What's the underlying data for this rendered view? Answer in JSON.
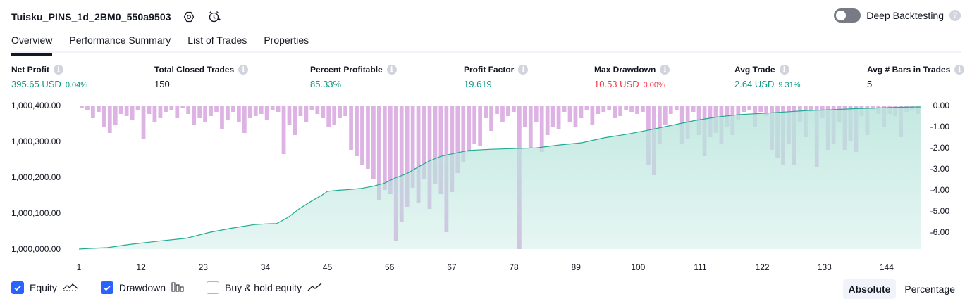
{
  "header": {
    "strategy_name": "Tuisku_PINS_1d_2BM0_550a9503",
    "settings_icon": "settings-icon",
    "alert_icon": "add-alert-icon",
    "deep_backtesting_label": "Deep Backtesting",
    "deep_backtesting_enabled": false
  },
  "tabs": [
    {
      "label": "Overview",
      "active": true
    },
    {
      "label": "Performance Summary",
      "active": false
    },
    {
      "label": "List of Trades",
      "active": false
    },
    {
      "label": "Properties",
      "active": false
    }
  ],
  "metrics": [
    {
      "label": "Net Profit",
      "value": "395.65 USD",
      "pct": "0.04%",
      "tone": "green"
    },
    {
      "label": "Total Closed Trades",
      "value": "150",
      "pct": "",
      "tone": "neutral"
    },
    {
      "label": "Percent Profitable",
      "value": "85.33%",
      "pct": "",
      "tone": "green"
    },
    {
      "label": "Profit Factor",
      "value": "19.619",
      "pct": "",
      "tone": "green"
    },
    {
      "label": "Max Drawdown",
      "value": "10.53 USD",
      "pct": "0.00%",
      "tone": "red"
    },
    {
      "label": "Avg Trade",
      "value": "2.64 USD",
      "pct": "9.31%",
      "tone": "green"
    },
    {
      "label": "Avg # Bars in Trades",
      "value": "5",
      "pct": "",
      "tone": "neutral"
    }
  ],
  "legend": {
    "equity": {
      "label": "Equity",
      "checked": true,
      "icon": "equity-line-icon"
    },
    "drawdown": {
      "label": "Drawdown",
      "checked": true,
      "icon": "drawdown-bars-icon"
    },
    "buy_hold": {
      "label": "Buy & hold equity",
      "checked": false,
      "icon": "buy-hold-line-icon"
    }
  },
  "view_mode": {
    "absolute": "Absolute",
    "percentage": "Percentage",
    "selected": "Absolute"
  },
  "colors": {
    "equity_line": "#22ab94",
    "equity_fill": "#b9e5dc",
    "drawdown_bar": "#ce93d8",
    "drawdown_bar_overlap": "#9fa8da",
    "accent": "#2962ff"
  },
  "chart_data": {
    "type": "area",
    "x_ticks": [
      "1",
      "12",
      "23",
      "34",
      "45",
      "56",
      "67",
      "78",
      "89",
      "100",
      "111",
      "122",
      "133",
      "144"
    ],
    "y_left_ticks": [
      "1,000,400.00",
      "1,000,300.00",
      "1,000,200.00",
      "1,000,100.00",
      "1,000,000.00"
    ],
    "y_right_ticks": [
      "0.00",
      "-1.00",
      "-2.00",
      "-3.00",
      "-4.00",
      "-5.00",
      "-6.00"
    ],
    "ylim_equity": [
      1000000,
      1000400
    ],
    "ylim_drawdown": [
      -6.8,
      0
    ],
    "x_range": [
      1,
      150
    ],
    "series": [
      {
        "name": "Equity",
        "x": [
          1,
          3,
          6,
          10,
          15,
          20,
          24,
          28,
          32,
          34,
          36,
          38,
          40,
          42,
          44,
          45,
          47,
          49,
          51,
          53,
          55,
          57,
          59,
          61,
          63,
          65,
          67,
          70,
          74,
          78,
          82,
          86,
          90,
          94,
          98,
          102,
          106,
          110,
          114,
          118,
          122,
          126,
          130,
          134,
          138,
          142,
          146,
          150
        ],
        "values": [
          1000000,
          1000002,
          1000004,
          1000013,
          1000022,
          1000030,
          1000046,
          1000058,
          1000068,
          1000070,
          1000071,
          1000088,
          1000112,
          1000132,
          1000150,
          1000161,
          1000164,
          1000166,
          1000169,
          1000175,
          1000183,
          1000198,
          1000210,
          1000228,
          1000245,
          1000258,
          1000265,
          1000275,
          1000278,
          1000280,
          1000282,
          1000290,
          1000296,
          1000310,
          1000320,
          1000332,
          1000345,
          1000358,
          1000368,
          1000375,
          1000378,
          1000382,
          1000386,
          1000388,
          1000391,
          1000393,
          1000395,
          1000396
        ]
      },
      {
        "name": "Drawdown",
        "values": [
          0.1,
          0.2,
          0.6,
          0.3,
          1.0,
          1.3,
          0.9,
          0.4,
          0.5,
          0.7,
          0.2,
          1.6,
          0.4,
          0.8,
          0.6,
          0.3,
          0.2,
          0.6,
          0.1,
          0.4,
          0.9,
          0.6,
          0.8,
          0.5,
          0.3,
          1.1,
          0.7,
          0.3,
          0.8,
          1.3,
          0.6,
          0.5,
          0.4,
          0.7,
          0.2,
          0.3,
          2.3,
          0.9,
          1.4,
          0.5,
          0.8,
          0.2,
          0.4,
          0.6,
          1.0,
          0.9,
          0.6,
          0.5,
          2.1,
          2.4,
          2.8,
          3.0,
          3.5,
          4.5,
          4.0,
          4.2,
          6.4,
          5.5,
          4.8,
          3.9,
          4.6,
          3.5,
          4.9,
          3.7,
          4.2,
          6.0,
          4.1,
          3.2,
          2.7,
          2.2,
          1.8,
          1.9,
          0.6,
          1.2,
          0.4,
          0.8,
          0.5,
          0.3,
          6.8,
          1.0,
          2.0,
          0.8,
          2.2,
          1.4,
          1.0,
          1.1,
          0.3,
          0.8,
          1.0,
          0.6,
          0.2,
          0.9,
          0.4,
          0.3,
          0.2,
          0.6,
          0.5,
          0.2,
          0.3,
          0.4,
          0.3,
          2.8,
          3.3,
          1.8,
          0.9,
          0.4,
          0.2,
          1.8,
          1.6,
          0.3,
          1.4,
          2.4,
          1.5,
          1.3,
          1.8,
          1.0,
          1.4,
          0.7,
          0.3,
          0.2,
          1.0,
          0.3,
          0.5,
          2.1,
          2.5,
          2.8,
          1.8,
          2.8,
          0.8,
          1.5,
          0.3,
          2.9,
          0.6,
          2.1,
          1.8,
          0.8,
          2.1,
          1.7,
          2.2,
          0.5,
          1.4,
          0.2,
          0.4,
          1.0,
          0.4,
          0.5,
          1.5,
          0.3,
          0.2,
          0.4
        ]
      }
    ],
    "title": "",
    "xlabel": "",
    "ylabel": "",
    "grid": false
  }
}
